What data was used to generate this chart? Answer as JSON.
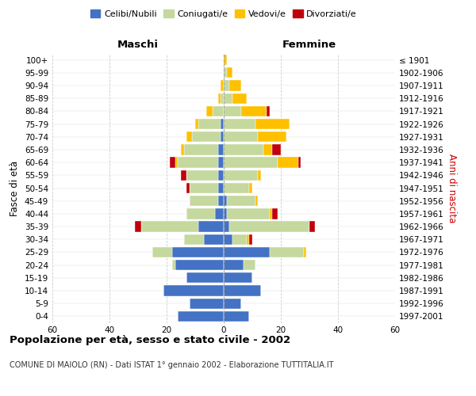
{
  "age_groups": [
    "0-4",
    "5-9",
    "10-14",
    "15-19",
    "20-24",
    "25-29",
    "30-34",
    "35-39",
    "40-44",
    "45-49",
    "50-54",
    "55-59",
    "60-64",
    "65-69",
    "70-74",
    "75-79",
    "80-84",
    "85-89",
    "90-94",
    "95-99",
    "100+"
  ],
  "birth_years": [
    "1997-2001",
    "1992-1996",
    "1987-1991",
    "1982-1986",
    "1977-1981",
    "1972-1976",
    "1967-1971",
    "1962-1966",
    "1957-1961",
    "1952-1956",
    "1947-1951",
    "1942-1946",
    "1937-1941",
    "1932-1936",
    "1927-1931",
    "1922-1926",
    "1917-1921",
    "1912-1916",
    "1907-1911",
    "1902-1906",
    "≤ 1901"
  ],
  "males": {
    "celibe": [
      16,
      12,
      21,
      13,
      17,
      18,
      7,
      9,
      3,
      2,
      2,
      2,
      2,
      2,
      1,
      1,
      0,
      0,
      0,
      0,
      0
    ],
    "coniugato": [
      0,
      0,
      0,
      0,
      1,
      7,
      7,
      20,
      10,
      10,
      10,
      11,
      14,
      12,
      10,
      8,
      4,
      1,
      0,
      0,
      0
    ],
    "vedovo": [
      0,
      0,
      0,
      0,
      0,
      0,
      0,
      0,
      0,
      0,
      0,
      0,
      1,
      1,
      2,
      1,
      2,
      1,
      1,
      0,
      0
    ],
    "divorziato": [
      0,
      0,
      0,
      0,
      0,
      0,
      0,
      2,
      0,
      0,
      1,
      2,
      2,
      0,
      0,
      0,
      0,
      0,
      0,
      0,
      0
    ]
  },
  "females": {
    "nubile": [
      9,
      6,
      13,
      10,
      7,
      16,
      3,
      2,
      1,
      1,
      0,
      0,
      0,
      0,
      0,
      0,
      0,
      0,
      0,
      0,
      0
    ],
    "coniugata": [
      0,
      0,
      0,
      0,
      4,
      12,
      5,
      28,
      15,
      10,
      9,
      12,
      19,
      14,
      12,
      11,
      6,
      3,
      2,
      1,
      0
    ],
    "vedova": [
      0,
      0,
      0,
      0,
      0,
      1,
      1,
      0,
      1,
      1,
      1,
      1,
      7,
      3,
      10,
      12,
      9,
      5,
      4,
      2,
      1
    ],
    "divorziata": [
      0,
      0,
      0,
      0,
      0,
      0,
      1,
      2,
      2,
      0,
      0,
      0,
      1,
      3,
      0,
      0,
      1,
      0,
      0,
      0,
      0
    ]
  },
  "color_celibe": "#4472c4",
  "color_coniugato": "#c5d89d",
  "color_vedovo": "#ffc000",
  "color_divorziato": "#c0000b",
  "title": "Popolazione per età, sesso e stato civile - 2002",
  "subtitle": "COMUNE DI MAIOLO (RN) - Dati ISTAT 1° gennaio 2002 - Elaborazione TUTTITALIA.IT",
  "label_maschi": "Maschi",
  "label_femmine": "Femmine",
  "ylabel_left": "Fasce di età",
  "ylabel_right": "Anni di nascita",
  "legend_labels": [
    "Celibi/Nubili",
    "Coniugati/e",
    "Vedovi/e",
    "Divorziati/e"
  ],
  "xlim": 60
}
